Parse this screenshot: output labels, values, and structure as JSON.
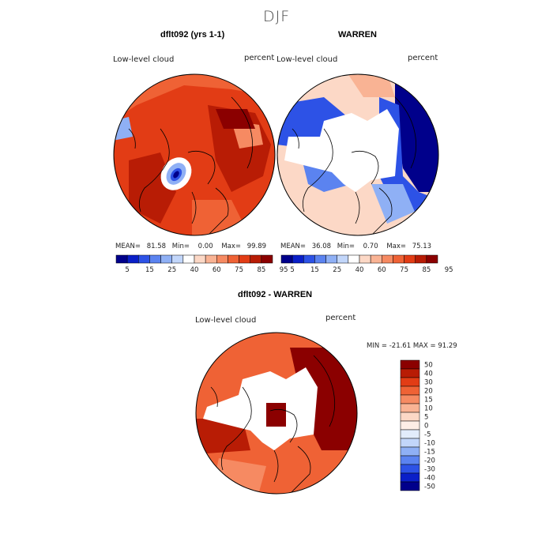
{
  "figure": {
    "season": "DJF"
  },
  "colors": {
    "level_colors": [
      "#00008b",
      "#0a1fc8",
      "#2d52e6",
      "#5b83f0",
      "#8fb0f5",
      "#c2d6fa",
      "#ffffff",
      "#fcd8c6",
      "#f9b394",
      "#f68a62",
      "#ef6235",
      "#e23c15",
      "#b81c05",
      "#8b0000"
    ],
    "diff_colors": [
      "#00008b",
      "#0a1fc8",
      "#2d52e6",
      "#5b83f0",
      "#8fb0f5",
      "#c2d6fa",
      "#e2ecfb",
      "#fdeee6",
      "#fcd8c6",
      "#f9b394",
      "#f68a62",
      "#ef6235",
      "#e23c15",
      "#b81c05",
      "#8b0000"
    ],
    "coastline": "#000000"
  },
  "chart_data": [
    {
      "type": "heatmap",
      "title": "dflt092 (yrs 1-1)",
      "field": "Low-level cloud",
      "units": "percent",
      "projection": "polar stereographic (north polar)",
      "stats": {
        "mean_label": "MEAN=",
        "mean": "81.58",
        "min_label": "Min=",
        "min": "0.00",
        "max_label": "Max=",
        "max": "99.89"
      },
      "colorbar": {
        "orientation": "horizontal",
        "tick_labels": [
          "5",
          "15",
          "25",
          "40",
          "60",
          "75",
          "85",
          "95"
        ],
        "tick_values": [
          5,
          15,
          25,
          40,
          60,
          75,
          85,
          95
        ]
      }
    },
    {
      "type": "heatmap",
      "title": "WARREN",
      "field": "Low-level cloud",
      "units": "percent",
      "projection": "polar stereographic (north polar)",
      "stats": {
        "mean_label": "MEAN=",
        "mean": "36.08",
        "min_label": "Min=",
        "min": "0.70",
        "max_label": "Max=",
        "max": "75.13"
      },
      "colorbar": {
        "orientation": "horizontal",
        "tick_labels": [
          "5",
          "15",
          "25",
          "40",
          "60",
          "75",
          "85",
          "95"
        ],
        "tick_values": [
          5,
          15,
          25,
          40,
          60,
          75,
          85,
          95
        ]
      }
    },
    {
      "type": "heatmap",
      "title": "dflt092 - WARREN",
      "field": "Low-level cloud",
      "units": "percent",
      "projection": "polar stereographic (north polar)",
      "stats_text": "MIN = -21.61 MAX =  91.29",
      "colorbar": {
        "orientation": "vertical",
        "tick_labels": [
          "50",
          "40",
          "30",
          "20",
          "15",
          "10",
          "5",
          "0",
          "-5",
          "-10",
          "-15",
          "-20",
          "-30",
          "-40",
          "-50"
        ],
        "tick_values": [
          50,
          40,
          30,
          20,
          15,
          10,
          5,
          0,
          -5,
          -10,
          -15,
          -20,
          -30,
          -40,
          -50
        ]
      }
    }
  ]
}
